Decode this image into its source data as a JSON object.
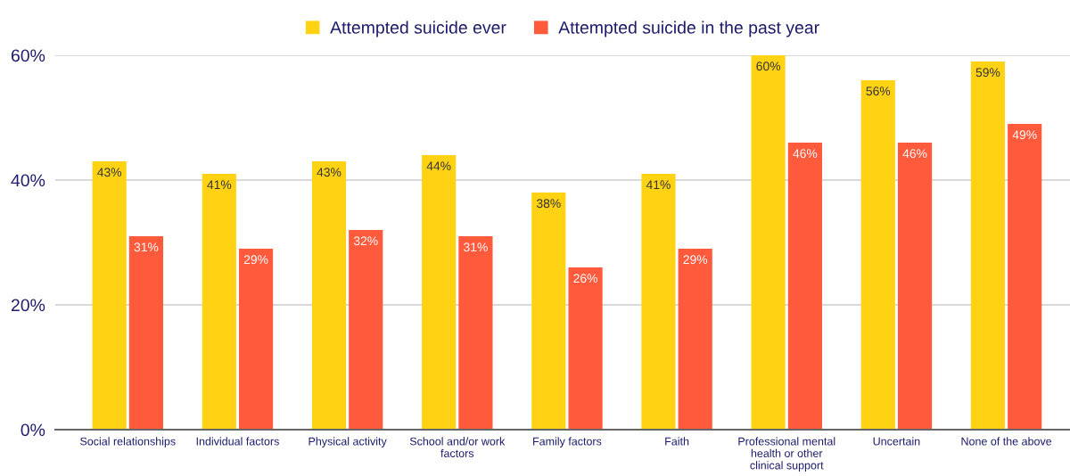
{
  "chart_data": {
    "type": "bar",
    "categories": [
      "Social relationships",
      "Individual factors",
      "Physical activity",
      "School and/or work\nfactors",
      "Family factors",
      "Faith",
      "Professional mental\nhealth or other\nclinical support",
      "Uncertain",
      "None of the above"
    ],
    "series": [
      {
        "name": "Attempted suicide ever",
        "color": "#ffd314",
        "values": [
          43,
          41,
          43,
          44,
          38,
          41,
          60,
          56,
          59
        ],
        "value_labels": [
          "43%",
          "41%",
          "43%",
          "44%",
          "38%",
          "41%",
          "60%",
          "56%",
          "59%"
        ]
      },
      {
        "name": "Attempted suicide in the past year",
        "color": "#ff5a3c",
        "values": [
          31,
          29,
          32,
          31,
          26,
          29,
          46,
          46,
          49
        ],
        "value_labels": [
          "31%",
          "29%",
          "32%",
          "31%",
          "26%",
          "29%",
          "46%",
          "46%",
          "49%"
        ]
      }
    ],
    "ylim": [
      0,
      60
    ],
    "yticks": [
      {
        "value": 0,
        "label": "0%"
      },
      {
        "value": 20,
        "label": "20%"
      },
      {
        "value": 40,
        "label": "40%"
      },
      {
        "value": 60,
        "label": "60%"
      }
    ],
    "grid": "y",
    "legend": "top"
  }
}
